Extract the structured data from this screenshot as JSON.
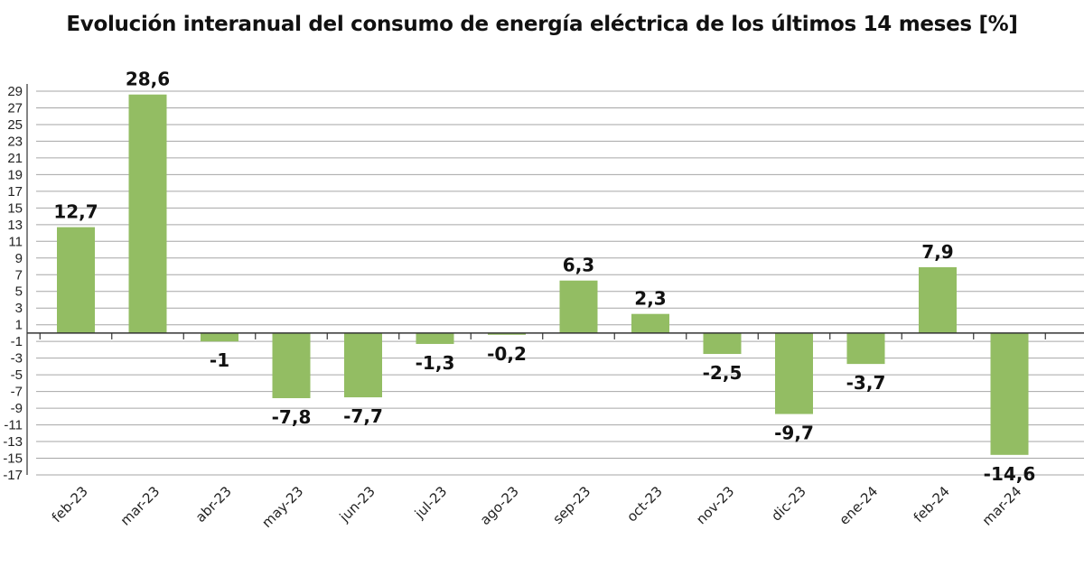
{
  "chart_data": {
    "type": "bar",
    "title": "Evolución interanual del consumo de energía eléctrica de los últimos 14 meses [%]",
    "xlabel": "",
    "ylabel": "",
    "categories": [
      "feb-23",
      "mar-23",
      "abr-23",
      "may-23",
      "jun-23",
      "jul-23",
      "ago-23",
      "sep-23",
      "oct-23",
      "nov-23",
      "dic-23",
      "ene-24",
      "feb-24",
      "mar-24"
    ],
    "values": [
      12.7,
      28.6,
      -1,
      -7.8,
      -7.7,
      -1.3,
      -0.2,
      6.3,
      2.3,
      -2.5,
      -9.7,
      -3.7,
      7.9,
      -14.6
    ],
    "value_labels": [
      "12,7",
      "28,6",
      "-1",
      "-7,8",
      "-7,7",
      "-1,3",
      "-0,2",
      "6,3",
      "2,3",
      "-2,5",
      "-9,7",
      "-3,7",
      "7,9",
      "-14,6"
    ],
    "y_ticks": [
      29,
      27,
      25,
      23,
      21,
      19,
      17,
      15,
      13,
      11,
      9,
      7,
      5,
      3,
      1,
      -1,
      -3,
      -5,
      -7,
      -9,
      -11,
      -13,
      -15,
      -17
    ],
    "ylim": [
      -17,
      29
    ],
    "grid": true,
    "legend": "none",
    "colors": {
      "bar": "#93bd63",
      "grid": "#a6a6a6",
      "axis": "#333333"
    }
  }
}
